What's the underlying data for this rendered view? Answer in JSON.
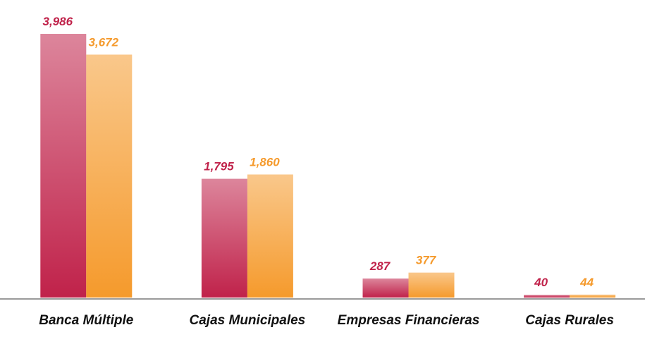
{
  "chart_data": {
    "type": "bar",
    "categories": [
      "Banca Múltiple",
      "Cajas Municipales",
      "Empresas Financieras",
      "Cajas Rurales"
    ],
    "series": [
      {
        "color": "#c0224a",
        "values": [
          3986,
          1795,
          287,
          40
        ],
        "value_labels": [
          "3,986",
          "1,795",
          "287",
          "40"
        ]
      },
      {
        "color": "#f59a2c",
        "values": [
          3672,
          1860,
          377,
          44
        ],
        "value_labels": [
          "3,672",
          "1,860",
          "377",
          "44"
        ]
      }
    ]
  }
}
